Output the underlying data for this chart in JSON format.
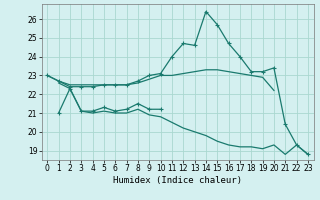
{
  "title": "",
  "xlabel": "Humidex (Indice chaleur)",
  "ylabel": "",
  "bg_color": "#d4f0f0",
  "grid_color": "#aad8d0",
  "line_color": "#1a7a6e",
  "xlim": [
    -0.5,
    23.5
  ],
  "ylim": [
    18.5,
    26.8
  ],
  "yticks": [
    19,
    20,
    21,
    22,
    23,
    24,
    25,
    26
  ],
  "xticks": [
    0,
    1,
    2,
    3,
    4,
    5,
    6,
    7,
    8,
    9,
    10,
    11,
    12,
    13,
    14,
    15,
    16,
    17,
    18,
    19,
    20,
    21,
    22,
    23
  ],
  "series": [
    {
      "x": [
        0,
        1,
        2,
        3,
        4,
        5,
        6,
        7,
        8,
        9,
        10,
        11,
        12,
        13,
        14,
        15,
        16,
        17,
        18,
        19,
        20
      ],
      "y": [
        23.0,
        22.7,
        22.5,
        22.5,
        22.5,
        22.5,
        22.5,
        22.5,
        22.6,
        22.8,
        23.0,
        23.0,
        23.1,
        23.2,
        23.3,
        23.3,
        23.2,
        23.1,
        23.0,
        22.9,
        22.2
      ],
      "marker": false
    },
    {
      "x": [
        0,
        1,
        2,
        3,
        4,
        5,
        6,
        7,
        8,
        9,
        10,
        11,
        12,
        13,
        14,
        15,
        16,
        17,
        18,
        19,
        20,
        21,
        22,
        23
      ],
      "y": [
        23.0,
        22.7,
        22.4,
        22.4,
        22.4,
        22.5,
        22.5,
        22.5,
        22.7,
        23.0,
        23.1,
        24.0,
        24.7,
        24.6,
        26.4,
        25.7,
        24.7,
        24.0,
        23.2,
        23.2,
        23.4,
        20.4,
        19.3,
        18.8
      ],
      "marker": true
    },
    {
      "x": [
        1,
        2,
        3,
        4,
        5,
        6,
        7,
        8,
        9,
        10
      ],
      "y": [
        21.0,
        22.3,
        21.1,
        21.1,
        21.3,
        21.1,
        21.2,
        21.5,
        21.2,
        21.2
      ],
      "marker": true
    },
    {
      "x": [
        1,
        2,
        3,
        4,
        5,
        6,
        7,
        8,
        9,
        10,
        11,
        12,
        13,
        14,
        15,
        16,
        17,
        18,
        19,
        20,
        21,
        22,
        23
      ],
      "y": [
        22.6,
        22.3,
        21.1,
        21.0,
        21.1,
        21.0,
        21.0,
        21.2,
        20.9,
        20.8,
        20.5,
        20.2,
        20.0,
        19.8,
        19.5,
        19.3,
        19.2,
        19.2,
        19.1,
        19.3,
        18.8,
        19.3,
        18.8
      ],
      "marker": false
    }
  ]
}
